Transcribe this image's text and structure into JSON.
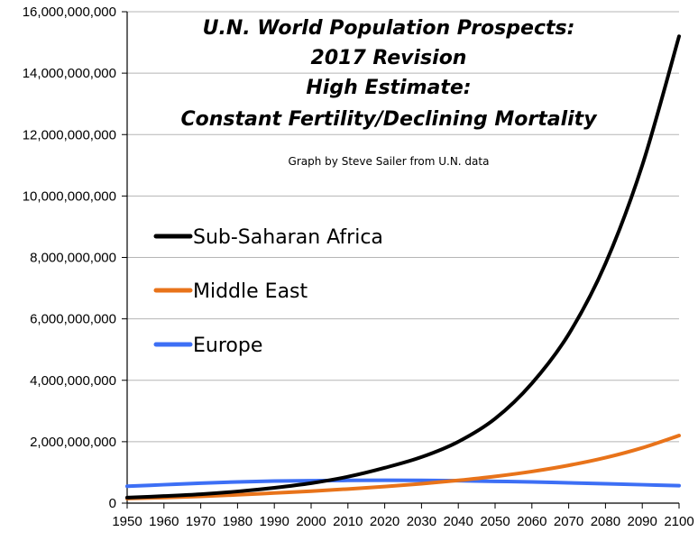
{
  "chart_data": {
    "type": "line",
    "title_lines": [
      "U.N. World Population Prospects:",
      "2017 Revision",
      "High Estimate:",
      "Constant Fertility/Declining Mortality"
    ],
    "subtitle": "Graph by Steve Sailer from U.N. data",
    "xlabel": "",
    "ylabel": "",
    "xlim": [
      1950,
      2100
    ],
    "ylim": [
      0,
      16000000000
    ],
    "x_ticks": [
      "1950",
      "1960",
      "1970",
      "1980",
      "1990",
      "2000",
      "2010",
      "2020",
      "2030",
      "2040",
      "2050",
      "2060",
      "2070",
      "2080",
      "2090",
      "2100"
    ],
    "y_ticks": [
      "0",
      "2,000,000,000",
      "4,000,000,000",
      "6,000,000,000",
      "8,000,000,000",
      "10,000,000,000",
      "12,000,000,000",
      "14,000,000,000",
      "16,000,000,000"
    ],
    "grid": "horizontal",
    "legend_position": "left-middle",
    "x": [
      1950,
      1960,
      1970,
      1980,
      1990,
      2000,
      2010,
      2020,
      2030,
      2040,
      2050,
      2060,
      2070,
      2080,
      2090,
      2100
    ],
    "series": [
      {
        "name": "Sub-Saharan Africa",
        "color": "#000000",
        "values": [
          180000000,
          230000000,
          290000000,
          380000000,
          500000000,
          650000000,
          860000000,
          1150000000,
          1500000000,
          2000000000,
          2750000000,
          3900000000,
          5500000000,
          7800000000,
          11000000000,
          15200000000
        ]
      },
      {
        "name": "Middle East",
        "color": "#e8731a",
        "values": [
          150000000,
          180000000,
          220000000,
          270000000,
          330000000,
          390000000,
          460000000,
          540000000,
          630000000,
          740000000,
          870000000,
          1030000000,
          1230000000,
          1480000000,
          1800000000,
          2200000000
        ]
      },
      {
        "name": "Europe",
        "color": "#3d6ff5",
        "values": [
          550000000,
          600000000,
          650000000,
          690000000,
          720000000,
          730000000,
          740000000,
          745000000,
          740000000,
          730000000,
          710000000,
          690000000,
          660000000,
          630000000,
          600000000,
          570000000
        ]
      }
    ]
  }
}
